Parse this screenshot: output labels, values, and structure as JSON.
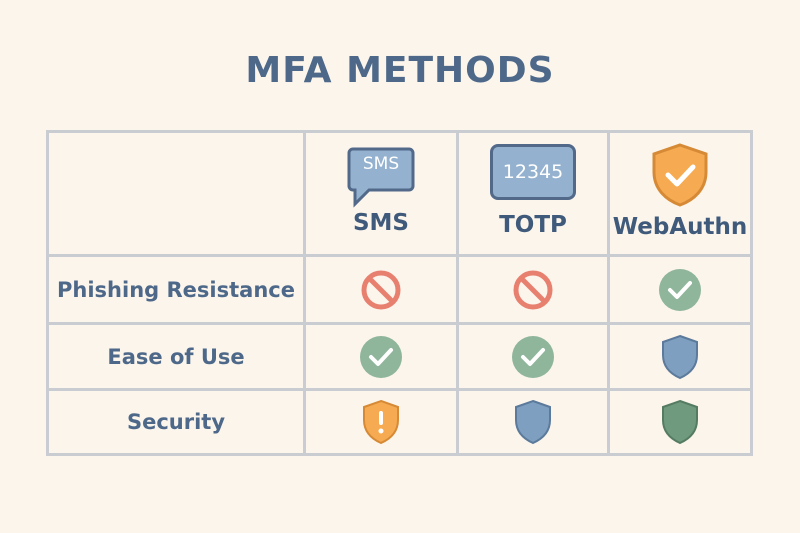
{
  "title": "MFA METHODS",
  "columns": [
    {
      "label": "SMS",
      "icon": "sms-bubble-icon",
      "icon_text": "SMS"
    },
    {
      "label": "TOTP",
      "icon": "totp-code-icon",
      "icon_text": "12345"
    },
    {
      "label": "WebAuthn",
      "icon": "shield-check-icon"
    }
  ],
  "rows": [
    {
      "label": "Phishing Resistance",
      "cells": [
        "prohibited-icon",
        "prohibited-icon",
        "check-circle-icon"
      ]
    },
    {
      "label": "Ease of Use",
      "cells": [
        "check-circle-icon",
        "check-circle-icon",
        "shield-icon"
      ]
    },
    {
      "label": "Security",
      "cells": [
        "warning-shield-icon",
        "shield-icon",
        "shield-icon"
      ]
    }
  ],
  "colors": {
    "red": "#e8806f",
    "green": "#8fb59b",
    "blue": "#7f9fc0",
    "orange": "#f6ab52",
    "dark_green": "#6f9a7e"
  }
}
